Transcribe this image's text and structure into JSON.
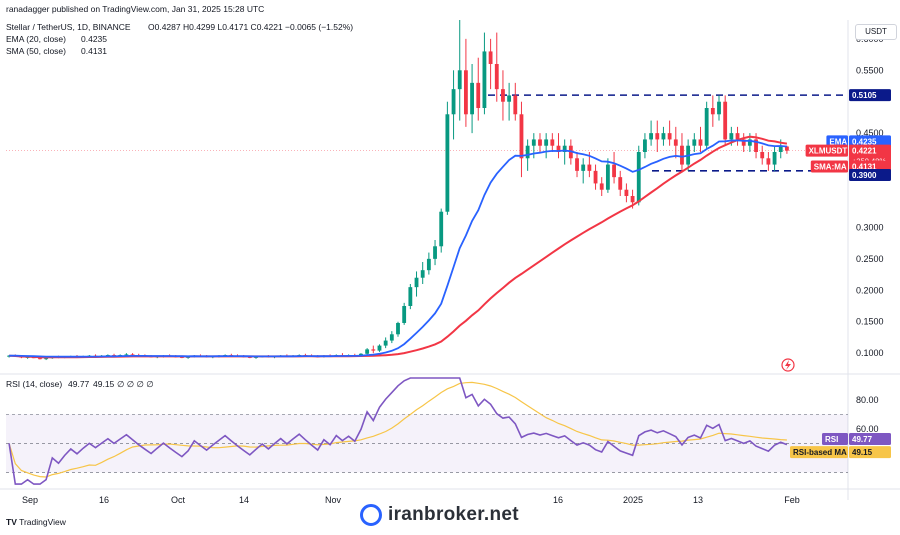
{
  "header": {
    "published": "ranadagger published on TradingView.com, Jan 31, 2025 15:28 UTC"
  },
  "legend": {
    "symbol": "Stellar / TetherUS, 1D, BINANCE",
    "ohlc": "O0.4287 H0.4299 L0.4171 C0.4221 −0.0065 (−1.52%)",
    "ema_label": "EMA (20, close)",
    "ema_value": "0.4235",
    "sma_label": "SMA (50, close)",
    "sma_value": "0.4131",
    "rsi_label": "RSI (14, close)",
    "rsi_value": "49.77",
    "rsi_ma_value": "49.15",
    "rsi_extra": "∅ ∅ ∅ ∅"
  },
  "colors": {
    "up": "#089981",
    "down": "#f23645",
    "ema": "#2962ff",
    "sma": "#f23645",
    "rsi": "#7e57c2",
    "rsi_ma": "#f7c548",
    "rsi_band": "#7e57c2",
    "dash": "#0b1a8a"
  },
  "price_axis": {
    "currency": "USDT",
    "ticks": [
      "0.6000",
      "0.5500",
      "0.5105",
      "0.4500",
      "0.3000",
      "0.2500",
      "0.2000",
      "0.1500",
      "0.1000"
    ]
  },
  "price_tags": [
    {
      "label": "",
      "value": "0.5105",
      "color": "#0b1a8a"
    },
    {
      "label": "EMA",
      "value": "0.4235",
      "color": "#2962ff"
    },
    {
      "label": "XLMUSDT",
      "value": "0.4221",
      "extra": "+350.48%",
      "extra2": "08:31:38",
      "color": "#f23645"
    },
    {
      "label": "SMA:MA",
      "value": "0.4131",
      "color": "#f23645"
    },
    {
      "label": "",
      "value": "0.3900",
      "color": "#0b1a8a"
    }
  ],
  "rsi_axis": {
    "ticks": [
      "80.00",
      "60.00"
    ],
    "rsi_tag_label": "RSI",
    "rsi_tag_value": "49.77",
    "ma_tag_label": "RSI-based MA",
    "ma_tag_value": "49.15"
  },
  "time_axis": {
    "labels": [
      "Sep",
      "16",
      "Oct",
      "14",
      "Nov",
      "16",
      "2025",
      "13",
      "Feb"
    ]
  },
  "footer": {
    "tradingview": "TradingView",
    "brand": "iranbroker.net"
  },
  "chart_data": {
    "type": "candlestick",
    "symbol": "XLMUSDT",
    "timeframe": "1D",
    "ylim": [
      0.07,
      0.63
    ],
    "resistance": 0.5105,
    "support": 0.39,
    "last_close": 0.4221,
    "ema20_last": 0.4235,
    "sma50_last": 0.4131,
    "candles": [
      [
        0.095,
        0.097,
        0.093,
        0.096
      ],
      [
        0.096,
        0.098,
        0.094,
        0.095
      ],
      [
        0.095,
        0.096,
        0.092,
        0.093
      ],
      [
        0.093,
        0.095,
        0.091,
        0.094
      ],
      [
        0.094,
        0.096,
        0.092,
        0.092
      ],
      [
        0.092,
        0.094,
        0.09,
        0.091
      ],
      [
        0.091,
        0.093,
        0.089,
        0.092
      ],
      [
        0.092,
        0.095,
        0.091,
        0.094
      ],
      [
        0.094,
        0.096,
        0.092,
        0.093
      ],
      [
        0.093,
        0.095,
        0.092,
        0.094
      ],
      [
        0.094,
        0.096,
        0.093,
        0.095
      ],
      [
        0.095,
        0.097,
        0.093,
        0.094
      ],
      [
        0.094,
        0.096,
        0.093,
        0.095
      ],
      [
        0.095,
        0.097,
        0.094,
        0.096
      ],
      [
        0.096,
        0.098,
        0.094,
        0.095
      ],
      [
        0.095,
        0.097,
        0.094,
        0.096
      ],
      [
        0.096,
        0.098,
        0.095,
        0.097
      ],
      [
        0.097,
        0.099,
        0.095,
        0.096
      ],
      [
        0.096,
        0.098,
        0.095,
        0.097
      ],
      [
        0.097,
        0.1,
        0.096,
        0.098
      ],
      [
        0.098,
        0.1,
        0.096,
        0.097
      ],
      [
        0.097,
        0.099,
        0.095,
        0.096
      ],
      [
        0.096,
        0.098,
        0.094,
        0.095
      ],
      [
        0.095,
        0.097,
        0.093,
        0.094
      ],
      [
        0.094,
        0.096,
        0.092,
        0.095
      ],
      [
        0.095,
        0.097,
        0.093,
        0.096
      ],
      [
        0.096,
        0.098,
        0.094,
        0.095
      ],
      [
        0.095,
        0.097,
        0.093,
        0.094
      ],
      [
        0.094,
        0.096,
        0.092,
        0.093
      ],
      [
        0.093,
        0.095,
        0.091,
        0.094
      ],
      [
        0.094,
        0.097,
        0.093,
        0.096
      ],
      [
        0.096,
        0.098,
        0.094,
        0.095
      ],
      [
        0.095,
        0.097,
        0.093,
        0.094
      ],
      [
        0.094,
        0.096,
        0.092,
        0.095
      ],
      [
        0.095,
        0.097,
        0.093,
        0.096
      ],
      [
        0.096,
        0.098,
        0.095,
        0.097
      ],
      [
        0.097,
        0.099,
        0.095,
        0.096
      ],
      [
        0.096,
        0.098,
        0.094,
        0.095
      ],
      [
        0.095,
        0.097,
        0.093,
        0.094
      ],
      [
        0.094,
        0.096,
        0.092,
        0.093
      ],
      [
        0.093,
        0.095,
        0.091,
        0.094
      ],
      [
        0.094,
        0.096,
        0.093,
        0.095
      ],
      [
        0.095,
        0.097,
        0.093,
        0.094
      ],
      [
        0.094,
        0.096,
        0.092,
        0.095
      ],
      [
        0.095,
        0.097,
        0.094,
        0.096
      ],
      [
        0.096,
        0.098,
        0.094,
        0.095
      ],
      [
        0.095,
        0.097,
        0.094,
        0.096
      ],
      [
        0.096,
        0.098,
        0.095,
        0.097
      ],
      [
        0.097,
        0.099,
        0.095,
        0.096
      ],
      [
        0.096,
        0.098,
        0.094,
        0.095
      ],
      [
        0.095,
        0.097,
        0.093,
        0.094
      ],
      [
        0.094,
        0.097,
        0.093,
        0.096
      ],
      [
        0.096,
        0.098,
        0.094,
        0.095
      ],
      [
        0.095,
        0.098,
        0.094,
        0.097
      ],
      [
        0.097,
        0.1,
        0.095,
        0.096
      ],
      [
        0.096,
        0.098,
        0.094,
        0.097
      ],
      [
        0.097,
        0.099,
        0.095,
        0.096
      ],
      [
        0.096,
        0.1,
        0.095,
        0.099
      ],
      [
        0.099,
        0.108,
        0.097,
        0.106
      ],
      [
        0.106,
        0.112,
        0.1,
        0.104
      ],
      [
        0.104,
        0.114,
        0.102,
        0.112
      ],
      [
        0.112,
        0.125,
        0.108,
        0.12
      ],
      [
        0.12,
        0.135,
        0.116,
        0.13
      ],
      [
        0.13,
        0.15,
        0.126,
        0.148
      ],
      [
        0.148,
        0.18,
        0.145,
        0.175
      ],
      [
        0.175,
        0.21,
        0.17,
        0.205
      ],
      [
        0.205,
        0.23,
        0.19,
        0.22
      ],
      [
        0.22,
        0.245,
        0.21,
        0.232
      ],
      [
        0.232,
        0.26,
        0.225,
        0.25
      ],
      [
        0.25,
        0.28,
        0.24,
        0.27
      ],
      [
        0.27,
        0.33,
        0.26,
        0.325
      ],
      [
        0.325,
        0.5,
        0.32,
        0.48
      ],
      [
        0.48,
        0.55,
        0.44,
        0.52
      ],
      [
        0.52,
        0.63,
        0.47,
        0.55
      ],
      [
        0.55,
        0.6,
        0.46,
        0.48
      ],
      [
        0.48,
        0.56,
        0.45,
        0.53
      ],
      [
        0.53,
        0.57,
        0.47,
        0.49
      ],
      [
        0.49,
        0.61,
        0.48,
        0.58
      ],
      [
        0.58,
        0.6,
        0.52,
        0.56
      ],
      [
        0.56,
        0.61,
        0.5,
        0.52
      ],
      [
        0.52,
        0.55,
        0.47,
        0.5
      ],
      [
        0.5,
        0.53,
        0.47,
        0.51
      ],
      [
        0.51,
        0.53,
        0.47,
        0.48
      ],
      [
        0.48,
        0.5,
        0.38,
        0.41
      ],
      [
        0.41,
        0.44,
        0.39,
        0.43
      ],
      [
        0.43,
        0.45,
        0.41,
        0.44
      ],
      [
        0.44,
        0.45,
        0.42,
        0.43
      ],
      [
        0.43,
        0.45,
        0.41,
        0.44
      ],
      [
        0.44,
        0.45,
        0.42,
        0.43
      ],
      [
        0.43,
        0.45,
        0.41,
        0.42
      ],
      [
        0.42,
        0.44,
        0.4,
        0.43
      ],
      [
        0.43,
        0.44,
        0.4,
        0.41
      ],
      [
        0.41,
        0.42,
        0.38,
        0.39
      ],
      [
        0.39,
        0.41,
        0.37,
        0.4
      ],
      [
        0.4,
        0.42,
        0.38,
        0.39
      ],
      [
        0.39,
        0.4,
        0.36,
        0.37
      ],
      [
        0.37,
        0.38,
        0.35,
        0.36
      ],
      [
        0.36,
        0.41,
        0.355,
        0.4
      ],
      [
        0.4,
        0.42,
        0.37,
        0.38
      ],
      [
        0.38,
        0.39,
        0.35,
        0.36
      ],
      [
        0.36,
        0.37,
        0.34,
        0.35
      ],
      [
        0.35,
        0.36,
        0.33,
        0.34
      ],
      [
        0.34,
        0.43,
        0.335,
        0.42
      ],
      [
        0.42,
        0.45,
        0.41,
        0.44
      ],
      [
        0.44,
        0.47,
        0.43,
        0.45
      ],
      [
        0.45,
        0.47,
        0.42,
        0.44
      ],
      [
        0.44,
        0.46,
        0.43,
        0.45
      ],
      [
        0.45,
        0.47,
        0.43,
        0.44
      ],
      [
        0.44,
        0.46,
        0.41,
        0.43
      ],
      [
        0.43,
        0.45,
        0.39,
        0.4
      ],
      [
        0.4,
        0.44,
        0.39,
        0.43
      ],
      [
        0.43,
        0.45,
        0.42,
        0.44
      ],
      [
        0.44,
        0.46,
        0.42,
        0.43
      ],
      [
        0.43,
        0.5,
        0.425,
        0.49
      ],
      [
        0.49,
        0.51,
        0.46,
        0.48
      ],
      [
        0.48,
        0.51,
        0.47,
        0.5
      ],
      [
        0.5,
        0.51,
        0.43,
        0.44
      ],
      [
        0.44,
        0.46,
        0.43,
        0.45
      ],
      [
        0.45,
        0.46,
        0.43,
        0.44
      ],
      [
        0.44,
        0.45,
        0.42,
        0.43
      ],
      [
        0.43,
        0.45,
        0.42,
        0.44
      ],
      [
        0.44,
        0.45,
        0.41,
        0.42
      ],
      [
        0.42,
        0.43,
        0.4,
        0.41
      ],
      [
        0.41,
        0.42,
        0.39,
        0.4
      ],
      [
        0.4,
        0.43,
        0.39,
        0.42
      ],
      [
        0.42,
        0.44,
        0.41,
        0.43
      ],
      [
        0.4287,
        0.4299,
        0.4171,
        0.4221
      ]
    ],
    "rsi_range": [
      20,
      95
    ]
  }
}
